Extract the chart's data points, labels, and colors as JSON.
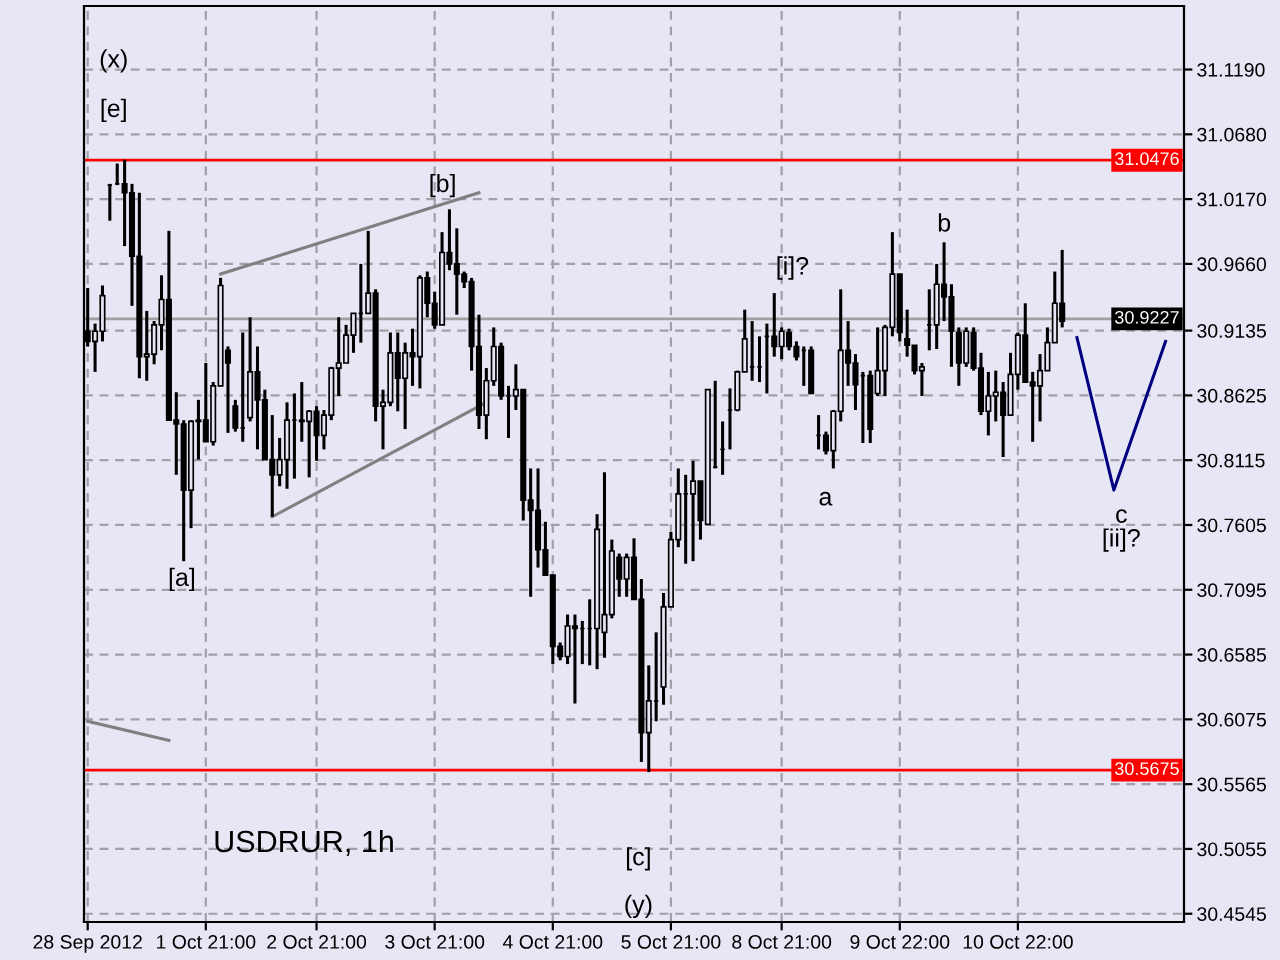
{
  "chart_data": {
    "type": "candlestick",
    "title": "USDRUR, 1h",
    "categories": [
      "28 Sep 2012",
      null,
      null,
      null,
      null,
      null,
      null,
      null,
      null,
      null,
      null,
      null,
      null,
      null,
      null,
      null,
      "1 Oct 21:00",
      null,
      null,
      null,
      null,
      null,
      null,
      null,
      null,
      null,
      null,
      null,
      null,
      null,
      null,
      "2 Oct 21:00",
      null,
      null,
      null,
      null,
      null,
      null,
      null,
      null,
      null,
      null,
      null,
      null,
      null,
      null,
      null,
      "3 Oct 21:00",
      null,
      null,
      null,
      null,
      null,
      null,
      null,
      null,
      null,
      null,
      null,
      null,
      null,
      null,
      null,
      "4 Oct 21:00",
      null,
      null,
      null,
      null,
      null,
      null,
      null,
      null,
      null,
      null,
      null,
      null,
      null,
      null,
      null,
      "5 Oct 21:00",
      null,
      null,
      null,
      null,
      null,
      null,
      null,
      null,
      null,
      null,
      null,
      null,
      null,
      null,
      "8 Oct 21:00",
      null,
      null,
      null,
      null,
      null,
      null,
      null,
      null,
      null,
      null,
      null,
      null,
      null,
      null,
      null,
      "9 Oct 22:00",
      null,
      null,
      null,
      null,
      null,
      null,
      null,
      null,
      null,
      null,
      null,
      null,
      null,
      null,
      null,
      "10 Oct 22:00",
      null,
      null,
      null,
      null,
      null,
      null,
      null,
      null,
      null,
      null,
      null,
      null,
      null,
      null,
      null,
      null,
      null,
      null,
      null,
      null,
      null,
      null
    ],
    "ohlc": [
      [
        30.913,
        30.947,
        30.901,
        30.905
      ],
      [
        30.905,
        30.919,
        30.881,
        30.913
      ],
      [
        30.913,
        30.949,
        30.905,
        30.941
      ],
      [
        31.028,
        31.029,
        31.0,
        31.028
      ],
      [
        31.029,
        31.045,
        31.028,
        31.029
      ],
      [
        31.029,
        31.048,
        30.98,
        31.022
      ],
      [
        31.022,
        31.029,
        30.933,
        30.972
      ],
      [
        30.972,
        31.022,
        30.876,
        30.893
      ],
      [
        30.893,
        30.929,
        30.874,
        30.895
      ],
      [
        30.895,
        30.921,
        30.887,
        30.918
      ],
      [
        30.918,
        30.957,
        30.898,
        30.938
      ],
      [
        30.938,
        30.992,
        30.843,
        30.843
      ],
      [
        30.843,
        30.865,
        30.8,
        30.84
      ],
      [
        30.84,
        30.843,
        30.732,
        30.788
      ],
      [
        30.788,
        30.843,
        30.758,
        30.842
      ],
      [
        30.842,
        30.859,
        30.812,
        30.843
      ],
      [
        30.843,
        30.888,
        30.826,
        30.826
      ],
      [
        30.826,
        30.873,
        30.823,
        30.87
      ],
      [
        30.87,
        30.955,
        30.87,
        30.949
      ],
      [
        30.898,
        30.901,
        30.833,
        30.888
      ],
      [
        30.854,
        30.859,
        30.834,
        30.837
      ],
      [
        30.837,
        30.912,
        30.826,
        30.837
      ],
      [
        30.845,
        30.924,
        30.842,
        30.881
      ],
      [
        30.881,
        30.901,
        30.82,
        30.859
      ],
      [
        30.859,
        30.867,
        30.812,
        30.812
      ],
      [
        30.812,
        30.847,
        30.767,
        30.8
      ],
      [
        30.8,
        30.829,
        30.791,
        30.812
      ],
      [
        30.812,
        30.857,
        30.789,
        30.843
      ],
      [
        30.843,
        30.864,
        30.797,
        30.843
      ],
      [
        30.843,
        30.873,
        30.826,
        30.842
      ],
      [
        30.842,
        30.851,
        30.798,
        30.85
      ],
      [
        30.85,
        30.854,
        30.811,
        30.831
      ],
      [
        30.831,
        30.851,
        30.82,
        30.847
      ],
      [
        30.847,
        30.885,
        30.843,
        30.884
      ],
      [
        30.884,
        30.924,
        30.862,
        30.888
      ],
      [
        30.888,
        30.918,
        30.888,
        30.91
      ],
      [
        30.91,
        30.927,
        30.896,
        30.927
      ],
      [
        30.927,
        30.966,
        30.904,
        30.927
      ],
      [
        30.927,
        30.992,
        30.927,
        30.943
      ],
      [
        30.943,
        30.946,
        30.842,
        30.854
      ],
      [
        30.854,
        30.867,
        30.82,
        30.857
      ],
      [
        30.857,
        30.912,
        30.854,
        30.896
      ],
      [
        30.896,
        30.912,
        30.85,
        30.876
      ],
      [
        30.876,
        30.904,
        30.836,
        30.896
      ],
      [
        30.896,
        30.915,
        30.87,
        30.893
      ],
      [
        30.893,
        30.957,
        30.868,
        30.955
      ],
      [
        30.955,
        30.96,
        30.924,
        30.935
      ],
      [
        30.935,
        30.944,
        30.915,
        30.918
      ],
      [
        30.918,
        30.991,
        30.918,
        30.975
      ],
      [
        30.975,
        31.009,
        30.961,
        30.966
      ],
      [
        30.966,
        30.994,
        30.926,
        30.958
      ],
      [
        30.958,
        30.96,
        30.947,
        30.952
      ],
      [
        30.952,
        30.955,
        30.882,
        30.901
      ],
      [
        30.901,
        30.926,
        30.836,
        30.847
      ],
      [
        30.847,
        30.884,
        30.828,
        30.874
      ],
      [
        30.874,
        30.916,
        30.87,
        30.901
      ],
      [
        30.901,
        30.904,
        30.859,
        30.862
      ],
      [
        30.862,
        30.87,
        30.829,
        30.862
      ],
      [
        30.862,
        30.887,
        30.851,
        30.867
      ],
      [
        30.867,
        30.867,
        30.764,
        30.78
      ],
      [
        30.78,
        30.805,
        30.704,
        30.772
      ],
      [
        30.772,
        30.805,
        30.727,
        30.741
      ],
      [
        30.741,
        30.763,
        30.721,
        30.721
      ],
      [
        30.721,
        30.721,
        30.651,
        30.665
      ],
      [
        30.665,
        30.668,
        30.654,
        30.657
      ],
      [
        30.657,
        30.69,
        30.651,
        30.681
      ],
      [
        30.681,
        30.69,
        30.62,
        30.679
      ],
      [
        30.679,
        30.685,
        30.651,
        30.679
      ],
      [
        30.679,
        30.702,
        30.65,
        30.679
      ],
      [
        30.679,
        30.769,
        30.647,
        30.757
      ],
      [
        30.676,
        30.802,
        30.656,
        30.69
      ],
      [
        30.69,
        30.749,
        30.687,
        30.74
      ],
      [
        30.735,
        30.738,
        30.704,
        30.718
      ],
      [
        30.718,
        30.738,
        30.704,
        30.735
      ],
      [
        30.735,
        30.75,
        30.702,
        30.702
      ],
      [
        30.702,
        30.718,
        30.574,
        30.597
      ],
      [
        30.597,
        30.65,
        30.566,
        30.622
      ],
      [
        30.622,
        30.676,
        30.606,
        30.622
      ],
      [
        30.633,
        30.707,
        30.619,
        30.696
      ],
      [
        30.696,
        30.755,
        30.696,
        30.749
      ],
      [
        30.749,
        30.805,
        30.743,
        30.785
      ],
      [
        30.785,
        30.8,
        30.73,
        30.785
      ],
      [
        30.785,
        30.811,
        30.732,
        30.795
      ],
      [
        30.795,
        30.795,
        30.749,
        30.764
      ],
      [
        30.761,
        30.867,
        30.761,
        30.867
      ],
      [
        30.806,
        30.874,
        30.805,
        30.806
      ],
      [
        30.82,
        30.842,
        30.8,
        30.82
      ],
      [
        30.851,
        30.868,
        30.82,
        30.851
      ],
      [
        30.851,
        30.882,
        30.85,
        30.881
      ],
      [
        30.881,
        30.93,
        30.881,
        30.907
      ],
      [
        30.885,
        30.921,
        30.874,
        30.885
      ],
      [
        30.885,
        30.909,
        30.873,
        30.885
      ],
      [
        30.909,
        30.919,
        30.864,
        30.909
      ],
      [
        30.909,
        30.943,
        30.893,
        30.901
      ],
      [
        30.901,
        30.916,
        30.891,
        30.913
      ],
      [
        30.912,
        30.915,
        30.898,
        30.901
      ],
      [
        30.901,
        30.905,
        30.89,
        30.893
      ],
      [
        30.898,
        30.901,
        30.87,
        30.898
      ],
      [
        30.898,
        30.901,
        30.864,
        30.864
      ],
      [
        30.831,
        30.847,
        30.82,
        30.831
      ],
      [
        30.831,
        30.834,
        30.816,
        30.819
      ],
      [
        30.819,
        30.851,
        30.805,
        30.85
      ],
      [
        30.85,
        30.946,
        30.842,
        30.898
      ],
      [
        30.898,
        30.921,
        30.87,
        30.888
      ],
      [
        30.888,
        30.895,
        30.851,
        30.871
      ],
      [
        30.878,
        30.881,
        30.825,
        30.878
      ],
      [
        30.878,
        30.882,
        30.825,
        30.836
      ],
      [
        30.864,
        30.916,
        30.862,
        30.882
      ],
      [
        30.882,
        30.918,
        30.862,
        30.916
      ],
      [
        30.916,
        30.991,
        30.909,
        30.958
      ],
      [
        30.958,
        30.958,
        30.905,
        30.912
      ],
      [
        30.907,
        30.93,
        30.893,
        30.902
      ],
      [
        30.902,
        30.902,
        30.879,
        30.882
      ],
      [
        30.882,
        30.888,
        30.862,
        30.885
      ],
      [
        30.918,
        30.946,
        30.898,
        30.918
      ],
      [
        30.918,
        30.966,
        30.899,
        30.95
      ],
      [
        30.95,
        30.983,
        30.921,
        30.94
      ],
      [
        30.94,
        30.95,
        30.885,
        30.913
      ],
      [
        30.912,
        30.916,
        30.87,
        30.888
      ],
      [
        30.888,
        30.916,
        30.885,
        30.913
      ],
      [
        30.912,
        30.916,
        30.882,
        30.884
      ],
      [
        30.884,
        30.896,
        30.847,
        30.85
      ],
      [
        30.85,
        30.881,
        30.831,
        30.862
      ],
      [
        30.862,
        30.882,
        30.842,
        30.865
      ],
      [
        30.865,
        30.873,
        30.814,
        30.847
      ],
      [
        30.847,
        30.896,
        30.847,
        30.879
      ],
      [
        30.879,
        30.912,
        30.867,
        30.91
      ],
      [
        30.91,
        30.935,
        30.873,
        30.873
      ],
      [
        30.873,
        30.881,
        30.826,
        30.87
      ],
      [
        30.87,
        30.895,
        30.842,
        30.882
      ],
      [
        30.882,
        30.916,
        30.882,
        30.904
      ],
      [
        30.904,
        30.96,
        30.904,
        30.935
      ],
      [
        30.935,
        30.977,
        30.916,
        30.921
      ],
      null,
      null,
      null,
      null,
      null,
      null,
      null,
      null,
      null,
      null,
      null,
      null,
      null,
      null,
      null,
      null
    ],
    "color": "#000000",
    "series": [
      {
        "type": "line",
        "color": "#808080",
        "values": [
          null,
          null,
          null,
          null,
          null,
          null,
          null,
          null,
          null,
          null,
          null,
          null,
          null,
          null,
          null,
          null,
          null,
          null,
          30.958,
          null,
          null,
          null,
          null,
          null,
          null,
          null,
          null,
          null,
          null,
          null,
          null,
          null,
          null,
          null,
          null,
          null,
          null,
          null,
          null,
          null,
          null,
          null,
          null,
          null,
          null,
          null,
          null,
          null,
          null,
          null,
          null,
          null,
          null,
          31.022,
          null,
          null,
          null,
          null,
          null,
          null,
          null,
          null,
          null,
          null,
          null,
          null,
          null,
          null,
          null,
          null,
          null,
          null,
          null,
          null,
          null,
          null,
          null,
          null,
          null,
          null,
          null,
          null,
          null,
          null,
          null,
          null,
          null,
          null,
          null,
          null,
          null,
          null,
          null,
          null,
          null,
          null,
          null,
          null,
          null,
          null,
          null,
          null,
          null,
          null,
          null,
          null,
          null,
          null,
          null,
          null,
          null,
          null,
          null,
          null,
          null,
          null,
          null,
          null,
          null,
          null,
          null,
          null,
          null,
          null,
          null,
          null,
          null,
          null,
          null,
          null,
          null,
          null,
          null,
          null,
          null,
          null,
          null,
          null,
          null,
          null,
          null,
          null,
          null,
          null,
          null,
          null,
          null,
          null,
          null
        ]
      },
      {
        "type": "line",
        "color": "#808080",
        "values": [
          null,
          null,
          null,
          null,
          null,
          null,
          null,
          null,
          null,
          null,
          null,
          null,
          null,
          null,
          null,
          null,
          null,
          null,
          null,
          null,
          null,
          null,
          null,
          null,
          null,
          30.767,
          null,
          null,
          null,
          null,
          null,
          null,
          null,
          null,
          null,
          null,
          null,
          null,
          null,
          null,
          null,
          null,
          null,
          null,
          null,
          null,
          null,
          null,
          null,
          null,
          null,
          null,
          null,
          null,
          30.857,
          null,
          null,
          null,
          null,
          null,
          null,
          null,
          null,
          null,
          null,
          null,
          null,
          null,
          null,
          null,
          null,
          null,
          null,
          null,
          null,
          null,
          null,
          null,
          null,
          null,
          null,
          null,
          null,
          null,
          null,
          null,
          null,
          null,
          null,
          null,
          null,
          null,
          null,
          null,
          null,
          null,
          null,
          null,
          null,
          null,
          null,
          null,
          null,
          null,
          null,
          null,
          null,
          null,
          null,
          null,
          null,
          null,
          null,
          null,
          null,
          null,
          null,
          null,
          null,
          null,
          null,
          null,
          null,
          null,
          null,
          null,
          null,
          null,
          null,
          null,
          null,
          null,
          null,
          null,
          null,
          null,
          null,
          null,
          null,
          null,
          null,
          null,
          null,
          null,
          null,
          null,
          null,
          null,
          null
        ]
      },
      {
        "type": "line",
        "color": "#808080",
        "values": [
          30.606,
          null,
          null,
          null,
          null,
          null,
          null,
          null,
          null,
          null,
          null,
          30.591,
          null,
          null,
          null,
          null,
          null,
          null,
          null,
          null,
          null,
          null,
          null,
          null,
          null,
          null,
          null,
          null,
          null,
          null,
          null,
          null,
          null,
          null,
          null,
          null,
          null,
          null,
          null,
          null,
          null,
          null,
          null,
          null,
          null,
          null,
          null,
          null,
          null,
          null,
          null,
          null,
          null,
          null,
          null,
          null,
          null,
          null,
          null,
          null,
          null,
          null,
          null,
          null,
          null,
          null,
          null,
          null,
          null,
          null,
          null,
          null,
          null,
          null,
          null,
          null,
          null,
          null,
          null,
          null,
          null,
          null,
          null,
          null,
          null,
          null,
          null,
          null,
          null,
          null,
          null,
          null,
          null,
          null,
          null,
          null,
          null,
          null,
          null,
          null,
          null,
          null,
          null,
          null,
          null,
          null,
          null,
          null,
          null,
          null,
          null,
          null,
          null,
          null,
          null,
          null,
          null,
          null,
          null,
          null,
          null,
          null,
          null,
          null,
          null,
          null,
          null,
          null,
          null,
          null,
          null,
          null,
          null,
          null,
          null,
          null,
          null,
          null,
          null,
          null,
          null,
          null,
          null,
          null,
          null,
          null,
          null,
          null,
          null
        ]
      },
      {
        "type": "line",
        "color": "#000080",
        "values": [
          null,
          null,
          null,
          null,
          null,
          null,
          null,
          null,
          null,
          null,
          null,
          null,
          null,
          null,
          null,
          null,
          null,
          null,
          null,
          null,
          null,
          null,
          null,
          null,
          null,
          null,
          null,
          null,
          null,
          null,
          null,
          null,
          null,
          null,
          null,
          null,
          null,
          null,
          null,
          null,
          null,
          null,
          null,
          null,
          null,
          null,
          null,
          null,
          null,
          null,
          null,
          null,
          null,
          null,
          null,
          null,
          null,
          null,
          null,
          null,
          null,
          null,
          null,
          null,
          null,
          null,
          null,
          null,
          null,
          null,
          null,
          null,
          null,
          null,
          null,
          null,
          null,
          null,
          null,
          null,
          null,
          null,
          null,
          null,
          null,
          null,
          null,
          null,
          null,
          null,
          null,
          null,
          null,
          null,
          null,
          null,
          null,
          null,
          null,
          null,
          null,
          null,
          null,
          null,
          null,
          null,
          null,
          null,
          null,
          null,
          null,
          null,
          null,
          null,
          null,
          null,
          null,
          null,
          null,
          null,
          null,
          null,
          null,
          null,
          null,
          null,
          null,
          null,
          null,
          null,
          null,
          null,
          null,
          null,
          30.908,
          null,
          null,
          null,
          null,
          30.788,
          null,
          null,
          null,
          null,
          null,
          null,
          30.905,
          null,
          null
        ]
      }
    ],
    "ref_lines": [
      {
        "axis": "y",
        "value": 31.0476,
        "label": "31.0476",
        "color": "#ff0000"
      },
      {
        "axis": "y",
        "value": 30.9227,
        "label": "30.9227",
        "color": "#a0a0a0"
      },
      {
        "axis": "y",
        "value": 30.5675,
        "label": "30.5675",
        "color": "#ff0000"
      }
    ],
    "annotations": [
      "(x)",
      "[e]",
      "[a]",
      "[b]",
      "[c]",
      "(y)",
      "[i]?",
      "a",
      "b",
      "c",
      "[ii]?"
    ],
    "ylim": [
      30.448,
      31.169
    ],
    "yticks": [
      {
        "value": 31.119,
        "label": "31.1190"
      },
      {
        "value": 31.068,
        "label": "31.0680"
      },
      {
        "value": 31.017,
        "label": "31.0170"
      },
      {
        "value": 30.966,
        "label": "30.9660"
      },
      {
        "value": 30.9135,
        "label": "30.9135"
      },
      {
        "value": 30.8625,
        "label": "30.8625"
      },
      {
        "value": 30.8115,
        "label": "30.8115"
      },
      {
        "value": 30.7605,
        "label": "30.7605"
      },
      {
        "value": 30.7095,
        "label": "30.7095"
      },
      {
        "value": 30.6585,
        "label": "30.6585"
      },
      {
        "value": 30.6075,
        "label": "30.6075"
      },
      {
        "value": 30.5565,
        "label": "30.5565"
      },
      {
        "value": 30.5055,
        "label": "30.5055"
      },
      {
        "value": 30.4545,
        "label": "30.4545"
      }
    ],
    "grid": true
  }
}
